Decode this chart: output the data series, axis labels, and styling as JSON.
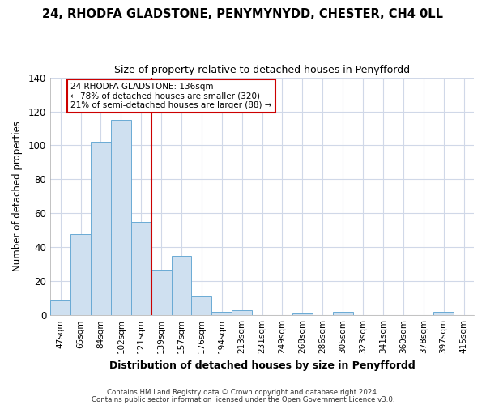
{
  "title": "24, RHODFA GLADSTONE, PENYMYNYDD, CHESTER, CH4 0LL",
  "subtitle": "Size of property relative to detached houses in Penyffordd",
  "xlabel": "Distribution of detached houses by size in Penyffordd",
  "ylabel": "Number of detached properties",
  "bar_labels": [
    "47sqm",
    "65sqm",
    "84sqm",
    "102sqm",
    "121sqm",
    "139sqm",
    "157sqm",
    "176sqm",
    "194sqm",
    "213sqm",
    "231sqm",
    "249sqm",
    "268sqm",
    "286sqm",
    "305sqm",
    "323sqm",
    "341sqm",
    "360sqm",
    "378sqm",
    "397sqm",
    "415sqm"
  ],
  "bar_values": [
    9,
    48,
    102,
    115,
    55,
    27,
    35,
    11,
    2,
    3,
    0,
    0,
    1,
    0,
    2,
    0,
    0,
    0,
    0,
    2,
    0
  ],
  "bar_color": "#cfe0f0",
  "bar_edge_color": "#6aaad4",
  "vline_index": 5,
  "vline_color": "#cc0000",
  "annotation_text": "24 RHODFA GLADSTONE: 136sqm\n← 78% of detached houses are smaller (320)\n21% of semi-detached houses are larger (88) →",
  "annotation_box_color": "#ffffff",
  "annotation_box_edge_color": "#cc0000",
  "ylim": [
    0,
    140
  ],
  "yticks": [
    0,
    20,
    40,
    60,
    80,
    100,
    120,
    140
  ],
  "plot_bg_color": "#ffffff",
  "fig_bg_color": "#ffffff",
  "grid_color": "#d0d8e8",
  "footer_line1": "Contains HM Land Registry data © Crown copyright and database right 2024.",
  "footer_line2": "Contains public sector information licensed under the Open Government Licence v3.0."
}
